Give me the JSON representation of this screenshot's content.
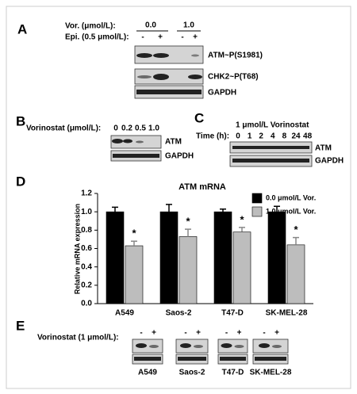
{
  "panel_a": {
    "label": "A",
    "dose_label": "Vor. (μmol/L):",
    "doses": [
      "0.0",
      "1.0"
    ],
    "epi_label": "Epi. (0.5 μmol/L):",
    "epi": [
      "-",
      "+",
      "-",
      "+"
    ],
    "bands": [
      "ATM~P(S1981)",
      "CHK2~P(T68)",
      "GAPDH"
    ]
  },
  "panel_b": {
    "label": "B",
    "dose_label": "Vorinostat (μmol/L):",
    "doses": [
      "0",
      "0.2",
      "0.5",
      "1.0"
    ],
    "bands": [
      "ATM",
      "GAPDH"
    ]
  },
  "panel_c": {
    "label": "C",
    "title": "1 μmol/L Vorinostat",
    "time_label": "Time (h):",
    "times": [
      "0",
      "1",
      "2",
      "4",
      "8",
      "24",
      "48"
    ],
    "bands": [
      "ATM",
      "GAPDH"
    ]
  },
  "chart_data": {
    "type": "bar",
    "panel_label": "D",
    "title": "ATM mRNA",
    "y_label": "Relative mRNA expression",
    "categories": [
      "A549",
      "Saos-2",
      "T47-D",
      "SK-MEL-28"
    ],
    "series": [
      {
        "name": "0.0 μmol/L Vor.",
        "color": "#000000",
        "values": [
          1.0,
          1.0,
          1.0,
          1.0
        ],
        "errors": [
          0.05,
          0.08,
          0.03,
          0.06
        ]
      },
      {
        "name": "1.0 μmol/L Vor.",
        "color": "#bdbdbd",
        "values": [
          0.63,
          0.73,
          0.78,
          0.64
        ],
        "errors": [
          0.05,
          0.08,
          0.05,
          0.08
        ],
        "annotations": [
          "*",
          "*",
          "*",
          "*"
        ]
      }
    ],
    "ylim": [
      0,
      1.2
    ],
    "yticks": [
      {
        "value": 0,
        "label": "0.0"
      },
      {
        "value": 0.2,
        "label": "0.2"
      },
      {
        "value": 0.4,
        "label": "0.4"
      },
      {
        "value": 0.6,
        "label": "0.6"
      },
      {
        "value": 0.8,
        "label": "0.8"
      },
      {
        "value": 1,
        "label": "1.0"
      },
      {
        "value": 1.2,
        "label": "1.2"
      }
    ],
    "legend": "top-right"
  },
  "panel_e": {
    "label": "E",
    "dose_label": "Vorinostat (1 μmol/L):",
    "signs": [
      "-",
      "+"
    ],
    "cell_lines": [
      "A549",
      "Saos-2",
      "T47-D",
      "SK-MEL-28"
    ]
  }
}
